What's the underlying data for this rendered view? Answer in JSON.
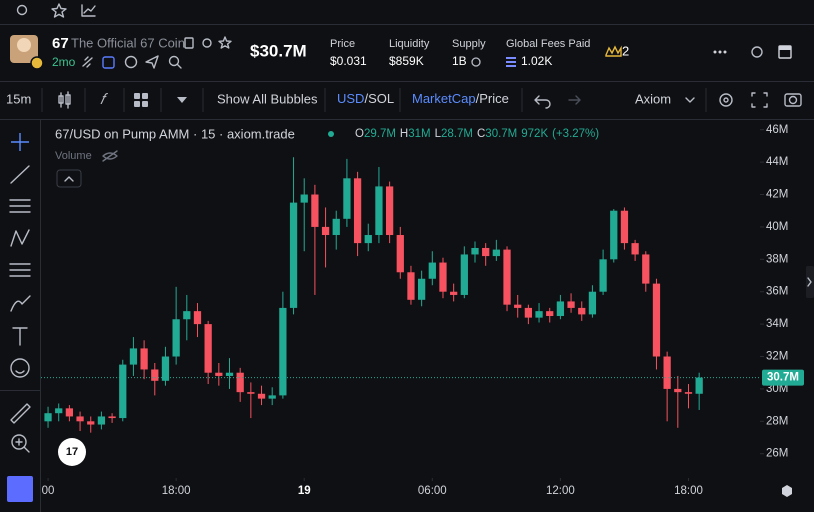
{
  "header": {
    "symbol": "67",
    "name": "The Official 67 Coin",
    "age": "2mo",
    "market_cap": "$30.7M",
    "stats": [
      {
        "label": "Price",
        "value": "$0.031"
      },
      {
        "label": "Liquidity",
        "value": "$859K"
      },
      {
        "label": "Supply",
        "value": "1B"
      },
      {
        "label": "Global Fees Paid",
        "value": "1.02K"
      }
    ],
    "holders_badge": "2"
  },
  "toolbar": {
    "interval": "15m",
    "bubbles": "Show All Bubbles",
    "currency_a": "USD",
    "currency_b": "/SOL",
    "mode_a": "MarketCap",
    "mode_b": "/Price",
    "source": "Axiom"
  },
  "chart_data": {
    "type": "candlestick",
    "title": "67/USD on Pump AMM · 15 · axiom.trade",
    "volume_label": "Volume",
    "legend": [
      {
        "key": "O",
        "value": "29.7M"
      },
      {
        "key": "H",
        "value": "31M"
      },
      {
        "key": "L",
        "value": "28.7M"
      },
      {
        "key": "C",
        "value": "30.7M"
      }
    ],
    "legend_volume": "972K",
    "legend_change": "(+3.27%)",
    "price_label": "30.7M",
    "up_color": "#22ab94",
    "down_color": "#f7525f",
    "x": [
      12,
      12.5,
      13,
      13.5,
      14,
      14.5,
      15,
      15.5,
      16,
      16.5,
      17,
      17.5,
      18,
      18.5,
      19,
      19.5,
      20,
      20.5,
      21,
      21.5,
      22,
      22.5,
      23,
      23.5,
      24,
      24.5,
      25,
      25.5,
      26,
      26.5,
      27,
      27.5,
      28,
      28.5,
      29,
      29.5,
      30,
      30.5,
      31,
      31.5,
      32,
      32.5,
      33,
      33.5,
      34,
      34.5,
      35,
      35.5,
      36,
      36.5,
      37,
      37.5,
      38,
      38.5,
      39,
      39.5,
      40,
      40.5,
      41,
      41.5,
      42,
      42.5
    ],
    "open": [
      28.0,
      28.5,
      28.8,
      28.3,
      28.0,
      27.8,
      28.3,
      28.2,
      31.5,
      32.5,
      31.2,
      30.5,
      32.0,
      34.3,
      34.8,
      34.0,
      31.0,
      30.8,
      31.0,
      29.8,
      29.7,
      29.4,
      29.6,
      35.0,
      41.5,
      42.0,
      40.0,
      39.5,
      40.5,
      43.0,
      39.0,
      39.5,
      42.5,
      39.5,
      37.2,
      35.5,
      36.8,
      37.8,
      36.0,
      35.8,
      38.3,
      38.7,
      38.2,
      38.6,
      35.2,
      35.0,
      34.4,
      34.8,
      34.5,
      35.4,
      35.0,
      34.6,
      36.0,
      38.0,
      41.0,
      39.0,
      38.3,
      36.5,
      32.0,
      30.0,
      29.8,
      29.7
    ],
    "high": [
      28.9,
      29.1,
      29.0,
      28.6,
      28.3,
      28.6,
      28.5,
      31.8,
      33.2,
      33.0,
      31.6,
      32.6,
      36.3,
      35.8,
      35.3,
      34.2,
      31.6,
      31.9,
      31.3,
      30.4,
      30.2,
      30.1,
      36.0,
      44.3,
      43.0,
      42.6,
      41.2,
      41.0,
      44.2,
      43.4,
      40.2,
      43.7,
      42.8,
      40.0,
      37.6,
      37.3,
      38.5,
      38.1,
      36.5,
      38.8,
      39.1,
      39.0,
      39.2,
      38.8,
      35.8,
      35.2,
      35.3,
      35.0,
      35.8,
      35.9,
      35.4,
      36.4,
      38.6,
      41.1,
      41.2,
      39.2,
      38.5,
      36.8,
      32.3,
      30.8,
      30.3,
      31.0
    ],
    "low": [
      27.6,
      28.0,
      28.0,
      27.4,
      27.3,
      27.5,
      27.9,
      28.0,
      30.8,
      30.6,
      29.6,
      30.2,
      31.5,
      33.0,
      33.2,
      30.3,
      30.2,
      30.0,
      29.2,
      28.2,
      29.0,
      29.0,
      29.4,
      34.6,
      38.5,
      35.8,
      37.5,
      38.6,
      40.0,
      38.2,
      38.5,
      39.0,
      39.0,
      36.8,
      35.2,
      35.1,
      36.4,
      35.6,
      35.4,
      35.6,
      37.8,
      37.6,
      37.9,
      34.8,
      34.4,
      34.0,
      34.1,
      34.1,
      34.3,
      34.7,
      34.2,
      34.4,
      35.8,
      37.8,
      38.6,
      37.9,
      36.0,
      31.2,
      28.0,
      27.6,
      28.8,
      28.7
    ],
    "close": [
      28.5,
      28.8,
      28.3,
      28.0,
      27.8,
      28.3,
      28.2,
      31.5,
      32.5,
      31.2,
      30.5,
      32.0,
      34.3,
      34.8,
      34.0,
      31.0,
      30.8,
      31.0,
      29.8,
      29.7,
      29.4,
      29.6,
      35.0,
      41.5,
      42.0,
      40.0,
      39.5,
      40.5,
      43.0,
      39.0,
      39.5,
      42.5,
      39.5,
      37.2,
      35.5,
      36.8,
      37.8,
      36.0,
      35.8,
      38.3,
      38.7,
      38.2,
      38.6,
      35.2,
      35.0,
      34.4,
      34.8,
      34.5,
      35.4,
      35.0,
      34.6,
      36.0,
      38.0,
      41.0,
      39.0,
      38.3,
      36.5,
      32.0,
      30.0,
      29.8,
      29.7,
      30.7
    ],
    "xlim": [
      11.67,
      45.35
    ],
    "xticks": [
      {
        "value": 12,
        "label": "00"
      },
      {
        "value": 18,
        "label": "18:00"
      },
      {
        "value": 24,
        "label": "19"
      },
      {
        "value": 30,
        "label": "06:00"
      },
      {
        "value": 36,
        "label": "12:00"
      },
      {
        "value": 42,
        "label": "18:00"
      }
    ],
    "ylim": [
      24.5,
      46.6
    ],
    "yticks": [
      {
        "value": 26,
        "label": "26M"
      },
      {
        "value": 28,
        "label": "28M"
      },
      {
        "value": 30,
        "label": "30M"
      },
      {
        "value": 32,
        "label": "32M"
      },
      {
        "value": 34,
        "label": "34M"
      },
      {
        "value": 36,
        "label": "36M"
      },
      {
        "value": 38,
        "label": "38M"
      },
      {
        "value": 40,
        "label": "40M"
      },
      {
        "value": 42,
        "label": "42M"
      },
      {
        "value": 44,
        "label": "44M"
      },
      {
        "value": 46,
        "label": "46M"
      }
    ]
  }
}
